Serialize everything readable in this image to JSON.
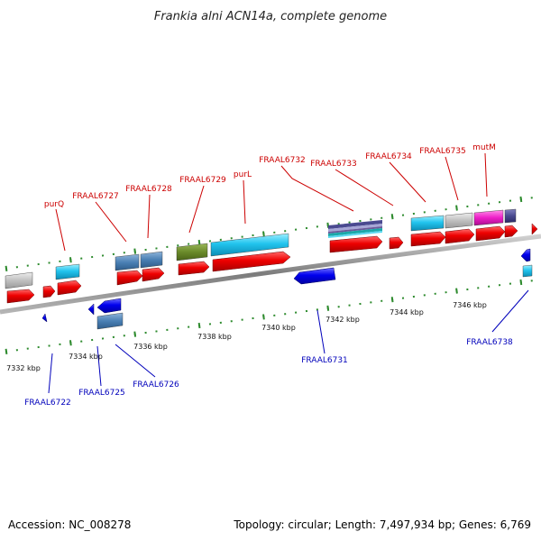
{
  "header": {
    "title": "Frankia alni ACN14a, complete genome"
  },
  "footer": {
    "accession": "Accession: NC_008278",
    "summary": "Topology: circular; Length: 7,497,934 bp; Genes: 6,769"
  },
  "colors": {
    "forward_label": "#cc0000",
    "reverse_label": "#0000bb",
    "tick": "#2e8b2e",
    "backbone": "#8a8a8a"
  },
  "scale": {
    "unit": "kbp",
    "labels": [
      "7332 kbp",
      "7334 kbp",
      "7336 kbp",
      "7338 kbp",
      "7340 kbp",
      "7342 kbp",
      "7344 kbp",
      "7346 kbp"
    ]
  },
  "gene_labels": {
    "forward": [
      "purQ",
      "FRAAL6727",
      "FRAAL6728",
      "FRAAL6729",
      "purL",
      "FRAAL6732",
      "FRAAL6733",
      "FRAAL6734",
      "FRAAL6735",
      "mutM"
    ],
    "reverse": [
      "FRAAL6722",
      "FRAAL6725",
      "FRAAL6726",
      "FRAAL6731",
      "FRAAL6738"
    ]
  }
}
